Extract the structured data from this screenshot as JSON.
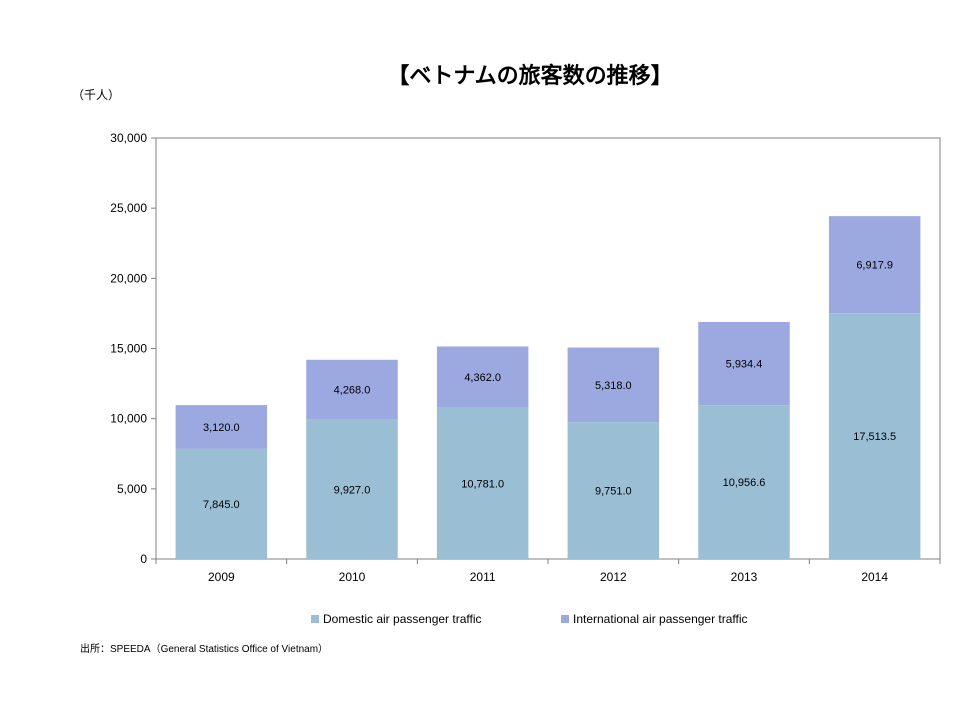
{
  "title": "【ベトナムの旅客数の推移】",
  "unit_label": "（千人）",
  "source": "出所：SPEEDA（General Statistics Office of Vietnam）",
  "colors": {
    "domestic": "#9abed4",
    "international": "#9ca9e0"
  },
  "chart_data": {
    "type": "bar",
    "stacked": true,
    "categories": [
      "2009",
      "2010",
      "2011",
      "2012",
      "2013",
      "2014"
    ],
    "series": [
      {
        "name": "Domestic air passenger traffic",
        "values": [
          7845.0,
          9927.0,
          10781.0,
          9751.0,
          10956.6,
          17513.5
        ],
        "labels": [
          "7,845.0",
          "9,927.0",
          "10,781.0",
          "9,751.0",
          "10,956.6",
          "17,513.5"
        ]
      },
      {
        "name": "International air passenger traffic",
        "values": [
          3120.0,
          4268.0,
          4362.0,
          5318.0,
          5934.4,
          6917.9
        ],
        "labels": [
          "3,120.0",
          "4,268.0",
          "4,362.0",
          "5,318.0",
          "5,934.4",
          "6,917.9"
        ]
      }
    ],
    "ylim": [
      0,
      30000
    ],
    "yticks": [
      0,
      5000,
      10000,
      15000,
      20000,
      25000,
      30000
    ],
    "ytick_labels": [
      "0",
      "5,000",
      "10,000",
      "15,000",
      "20,000",
      "25,000",
      "30,000"
    ],
    "legend_position": "bottom",
    "grid": false
  }
}
